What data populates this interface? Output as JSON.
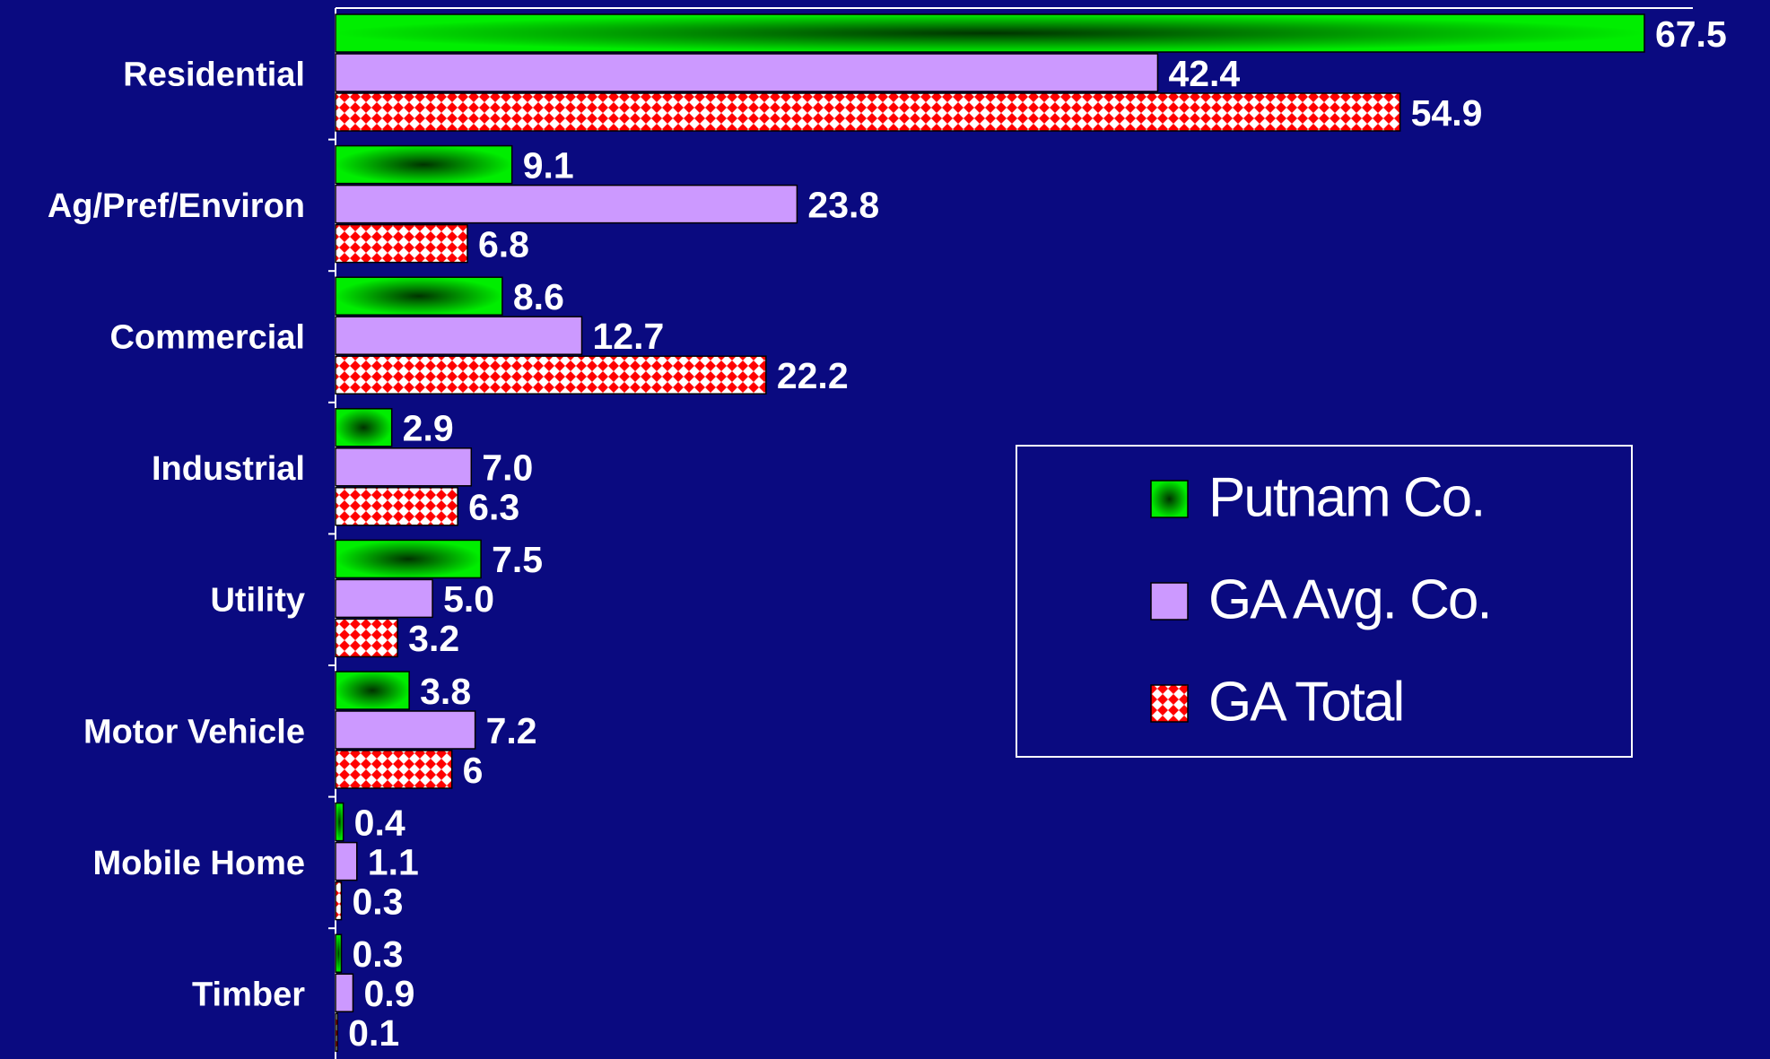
{
  "chart_data": {
    "type": "bar",
    "orientation": "horizontal",
    "categories": [
      "Residential",
      "Ag/Pref/Environ",
      "Commercial",
      "Industrial",
      "Utility",
      "Motor Vehicle",
      "Mobile Home",
      "Timber"
    ],
    "series": [
      {
        "name": "Putnam Co.",
        "color": "#00ee00",
        "values": [
          67.5,
          9.1,
          8.6,
          2.9,
          7.5,
          3.8,
          0.4,
          0.3
        ],
        "value_labels": [
          "67.5",
          "9.1",
          "8.6",
          "2.9",
          "7.5",
          "3.8",
          "0.4",
          "0.3"
        ]
      },
      {
        "name": "GA Avg. Co.",
        "color": "#cc99ff",
        "values": [
          42.4,
          23.8,
          12.7,
          7.0,
          5.0,
          7.2,
          1.1,
          0.9
        ],
        "value_labels": [
          "42.4",
          "23.8",
          "12.7",
          "7.0",
          "5.0",
          "7.2",
          "1.1",
          "0.9"
        ]
      },
      {
        "name": "GA Total",
        "color": "#ff0000",
        "values": [
          54.9,
          6.8,
          22.2,
          6.3,
          3.2,
          6,
          0.3,
          0.1
        ],
        "value_labels": [
          "54.9",
          "6.8",
          "22.2",
          "6.3",
          "3.2",
          "6",
          "0.3",
          "0.1"
        ]
      }
    ],
    "xlim": [
      0,
      70
    ],
    "legend": "right"
  }
}
